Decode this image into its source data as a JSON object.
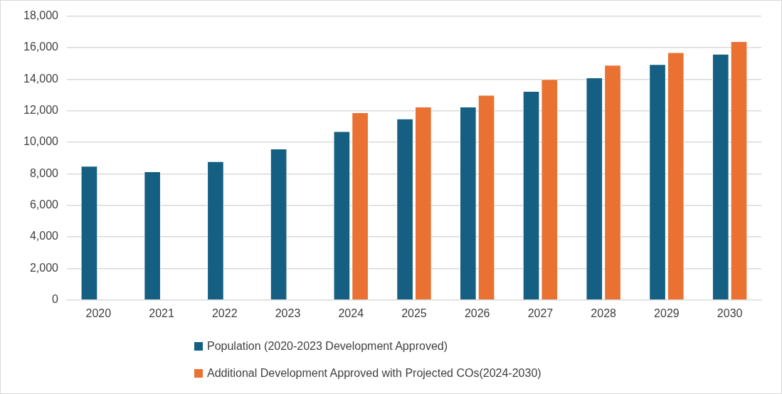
{
  "chart_data": {
    "type": "bar",
    "categories": [
      "2020",
      "2021",
      "2022",
      "2023",
      "2024",
      "2025",
      "2026",
      "2027",
      "2028",
      "2029",
      "2030"
    ],
    "series": [
      {
        "name": "Population (2020-2023 Development Approved)",
        "color": "#156082",
        "values": [
          8500,
          8150,
          8800,
          9600,
          10700,
          11500,
          12250,
          13250,
          14100,
          14950,
          15600
        ]
      },
      {
        "name": "Additional Development Approved with Projected COs(2024-2030)",
        "color": "#e97132",
        "values": [
          null,
          null,
          null,
          null,
          11900,
          12250,
          13000,
          14000,
          14900,
          15700,
          16400
        ]
      }
    ],
    "ylim": [
      0,
      18000
    ],
    "yticks": [
      {
        "value": 0,
        "label": "0"
      },
      {
        "value": 2000,
        "label": "2,000"
      },
      {
        "value": 4000,
        "label": "4,000"
      },
      {
        "value": 6000,
        "label": "6,000"
      },
      {
        "value": 8000,
        "label": "8,000"
      },
      {
        "value": 10000,
        "label": "10,000"
      },
      {
        "value": 12000,
        "label": "12,000"
      },
      {
        "value": 14000,
        "label": "14,000"
      },
      {
        "value": 16000,
        "label": "16,000"
      },
      {
        "value": 18000,
        "label": "18,000"
      }
    ],
    "grid": "y",
    "legend": "bottom"
  }
}
